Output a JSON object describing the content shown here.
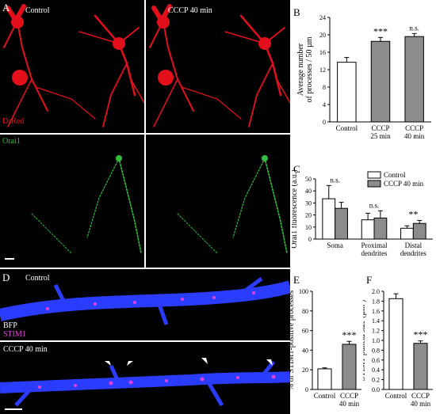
{
  "panels": {
    "A": {
      "letter": "A",
      "cond_left": "Control",
      "cond_right": "CCCP 40 min",
      "channel_top": "DsRed",
      "channel_bottom": "Orai1",
      "colors": {
        "dsred": "#e3101c",
        "orai1": "#2fbf3a"
      }
    },
    "B": {
      "letter": "B"
    },
    "C": {
      "letter": "C"
    },
    "D": {
      "letter": "D",
      "cond_top": "Control",
      "cond_bottom": "CCCP 40 min",
      "channel_bfp": "BFP",
      "channel_stim": "STIM1",
      "colors": {
        "bfp": "#2a3cff",
        "stim1": "#e040d8"
      }
    },
    "E": {
      "letter": "E"
    },
    "F": {
      "letter": "F"
    }
  },
  "chart_data": [
    {
      "id": "B",
      "type": "bar",
      "categories": [
        "Control",
        "CCCP\n25 min",
        "CCCP\n40 min"
      ],
      "values": [
        13.7,
        18.5,
        19.6
      ],
      "errors": [
        1.1,
        0.9,
        0.7
      ],
      "significance": [
        "",
        "***",
        "n.s."
      ],
      "ylabel": "Average number\nof processes / 50 µm",
      "ylim": [
        0,
        24
      ],
      "yticks": [
        0,
        4,
        8,
        12,
        16,
        20,
        24
      ],
      "colors": [
        "#ffffff",
        "#8c8c8c",
        "#8c8c8c"
      ]
    },
    {
      "id": "C",
      "type": "bar",
      "categories": [
        "Soma",
        "Proximal\ndendrites",
        "Distal\ndendrites"
      ],
      "series": [
        {
          "name": "Control",
          "values": [
            33.5,
            16,
            9
          ],
          "errors": [
            11,
            5.5,
            2
          ]
        },
        {
          "name": "CCCP 40 min",
          "values": [
            25.5,
            17.5,
            13
          ],
          "errors": [
            5,
            6,
            2.5
          ]
        }
      ],
      "significance": [
        "n.s.",
        "n.s.",
        "**"
      ],
      "ylabel": "Orai1 fluorescence (a.u.)",
      "ylim": [
        0,
        50
      ],
      "yticks": [
        0,
        10,
        20,
        30,
        40,
        50
      ],
      "legend": "top-right",
      "colors": [
        "#ffffff",
        "#8c8c8c"
      ]
    },
    {
      "id": "E",
      "type": "bar",
      "categories": [
        "Control",
        "CCCP\n40 min"
      ],
      "values": [
        21,
        46
      ],
      "errors": [
        1,
        3
      ],
      "significance": [
        "",
        "***"
      ],
      "ylabel": "% of STIM1-positive processes",
      "ylim": [
        0,
        100
      ],
      "yticks": [
        0,
        20,
        40,
        60,
        80,
        100
      ],
      "colors": [
        "#ffffff",
        "#8c8c8c"
      ]
    },
    {
      "id": "F",
      "type": "bar",
      "categories": [
        "Control",
        "CCCP\n40 min"
      ],
      "values": [
        1.85,
        0.94
      ],
      "errors": [
        0.1,
        0.05
      ],
      "significance": [
        "",
        "***"
      ],
      "ylabel": "STIM1-puncta size (µm²)",
      "ylim": [
        0,
        2.0
      ],
      "yticks": [
        0.0,
        0.2,
        0.4,
        0.6,
        0.8,
        1.0,
        1.2,
        1.4,
        1.6,
        1.8,
        2.0
      ],
      "colors": [
        "#ffffff",
        "#8c8c8c"
      ]
    }
  ]
}
